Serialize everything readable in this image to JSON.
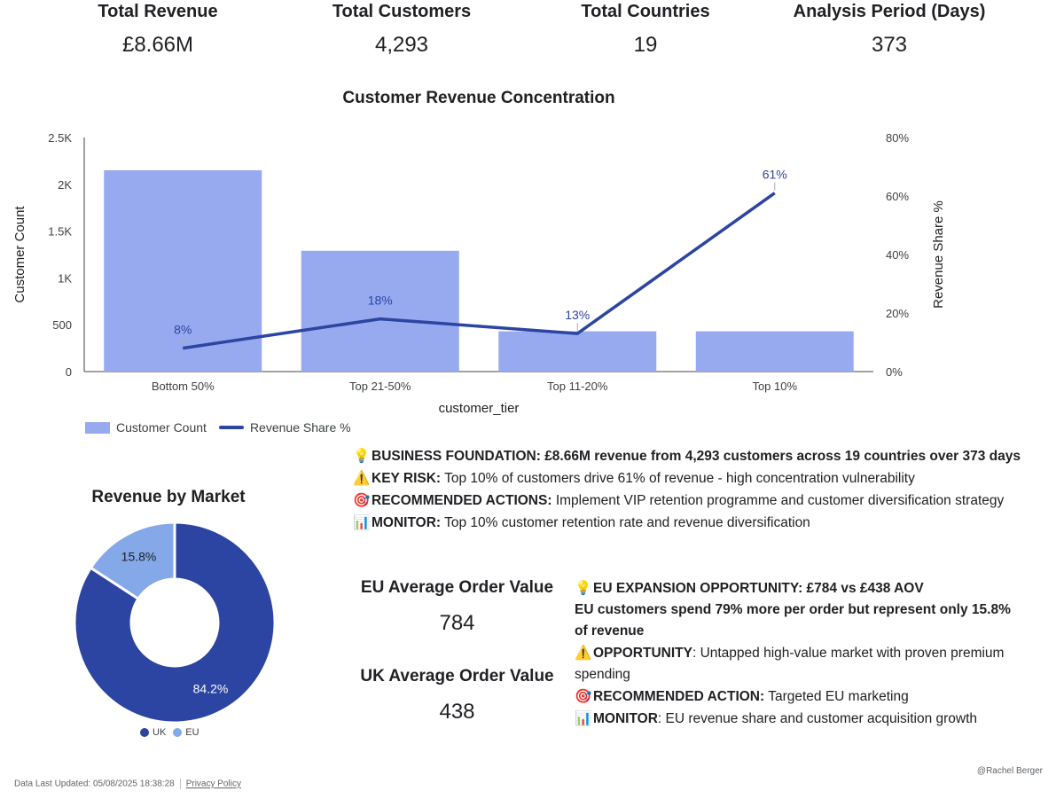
{
  "kpis": [
    {
      "label": "Total Revenue",
      "value": "£8.66M"
    },
    {
      "label": "Total Customers",
      "value": "4,293"
    },
    {
      "label": "Total Countries",
      "value": "19"
    },
    {
      "label": "Analysis Period (Days)",
      "value": "373"
    }
  ],
  "chart_data": [
    {
      "type": "bar",
      "title": "Customer Revenue Concentration",
      "xlabel": "customer_tier",
      "ylabel": "Customer Count",
      "y2label": "Revenue Share %",
      "categories": [
        "Bottom 50%",
        "Top 21-50%",
        "Top 11-20%",
        "Top 10%"
      ],
      "ylim": [
        0,
        2500
      ],
      "y_ticks": [
        "0",
        "500",
        "1K",
        "1.5K",
        "2K",
        "2.5K"
      ],
      "y2lim": [
        0,
        80
      ],
      "y2_ticks": [
        "0%",
        "20%",
        "40%",
        "60%",
        "80%"
      ],
      "series": [
        {
          "name": "Customer Count",
          "type": "bar",
          "color": "#97aaf0",
          "values": [
            2150,
            1290,
            430,
            430
          ]
        },
        {
          "name": "Revenue Share %",
          "type": "line",
          "axis": "right",
          "color": "#2c44a2",
          "values": [
            8,
            18,
            13,
            61
          ],
          "data_labels": [
            "8%",
            "18%",
            "13%",
            "61%"
          ]
        }
      ],
      "legend": "bottom-left"
    },
    {
      "type": "pie",
      "title": "Revenue by Market",
      "categories": [
        "UK",
        "EU"
      ],
      "values": [
        84.2,
        15.8
      ],
      "data_labels": [
        "84.2%",
        "15.8%"
      ],
      "colors": [
        "#2c44a2",
        "#84a8e8"
      ],
      "legend": "bottom"
    }
  ],
  "insights": [
    {
      "icon": "💡",
      "bold": "BUSINESS FOUNDATION: £8.66M revenue from 4,293 customers across 19 countries over 373 days",
      "text": ""
    },
    {
      "icon": "⚠️",
      "bold": "KEY RISK:",
      "text": " Top 10% of customers drive 61% of revenue - high concentration vulnerability"
    },
    {
      "icon": "🎯",
      "bold": "RECOMMENDED ACTIONS:",
      "text": " Implement VIP retention programme and customer diversification strategy"
    },
    {
      "icon": "📊",
      "bold": "MONITOR:",
      "text": " Top 10% customer retention rate and revenue diversification"
    }
  ],
  "aov": [
    {
      "label": "EU Average Order Value",
      "value": "784"
    },
    {
      "label": "UK Average Order Value",
      "value": "438"
    }
  ],
  "eu_insights": [
    {
      "icon": "💡",
      "bold": "EU EXPANSION OPPORTUNITY: £784 vs £438 AOV",
      "text": ""
    },
    {
      "icon": "",
      "bold": "EU customers spend 79% more per order but represent only 15.8% of revenue",
      "text": ""
    },
    {
      "icon": "⚠️",
      "bold": "OPPORTUNITY",
      "text": ": Untapped high-value market with proven premium spending"
    },
    {
      "icon": "🎯",
      "bold": "RECOMMENDED ACTION:",
      "text": " Targeted EU marketing"
    },
    {
      "icon": "📊",
      "bold": "MONITOR",
      "text": ": EU revenue share and customer acquisition growth"
    }
  ],
  "footer": {
    "updated": "Data Last Updated: 05/08/2025 18:38:28",
    "privacy": "Privacy Policy",
    "credit": "@Rachel Berger"
  }
}
